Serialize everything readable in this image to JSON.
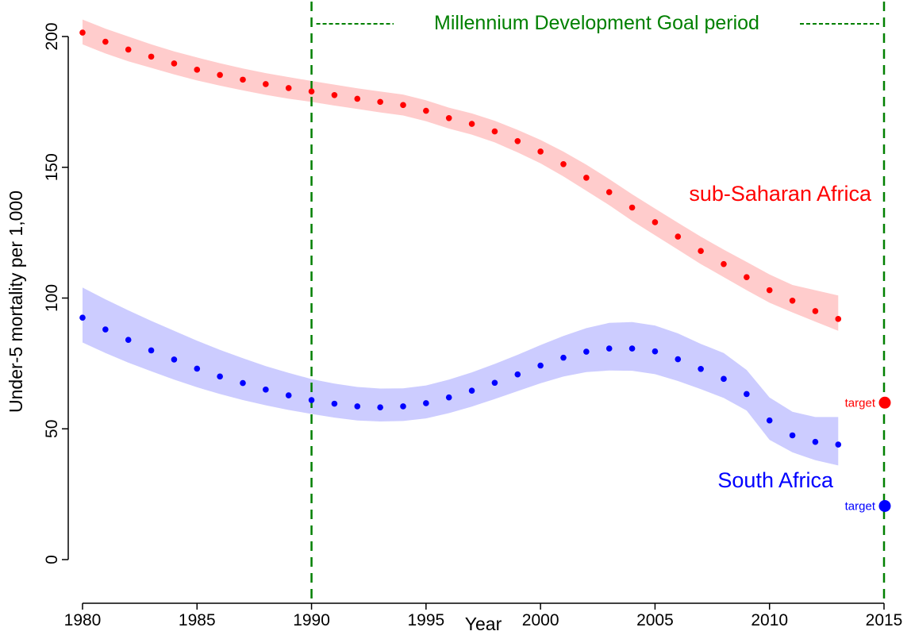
{
  "chart_data": {
    "type": "scatter",
    "xlabel": "Year",
    "ylabel": "Under-5 mortality per 1,000",
    "xlim": [
      1980,
      2015
    ],
    "ylim": [
      0,
      200
    ],
    "x_ticks": [
      "1980",
      "1985",
      "1990",
      "1995",
      "2000",
      "2005",
      "2010",
      "2015"
    ],
    "y_ticks": [
      "0",
      "50",
      "100",
      "150",
      "200"
    ],
    "grid": false,
    "years": [
      1980,
      1981,
      1982,
      1983,
      1984,
      1985,
      1986,
      1987,
      1988,
      1989,
      1990,
      1991,
      1992,
      1993,
      1994,
      1995,
      1996,
      1997,
      1998,
      1999,
      2000,
      2001,
      2002,
      2003,
      2004,
      2005,
      2006,
      2007,
      2008,
      2009,
      2010,
      2011,
      2012,
      2013
    ],
    "series": [
      {
        "name": "sub-Saharan Africa",
        "color": "#ff0000",
        "band_color": "#ffcccc",
        "values": [
          201.5,
          198,
          195,
          192.3,
          189.7,
          187.3,
          185.3,
          183.5,
          181.8,
          180.3,
          179,
          177.6,
          176.2,
          175,
          173.8,
          171.6,
          168.8,
          166.6,
          163.7,
          160,
          156,
          151.2,
          146,
          140.5,
          134.6,
          129,
          123.5,
          118,
          113,
          108,
          103,
          99,
          95,
          92
        ],
        "lower": [
          197,
          193.5,
          190.5,
          188,
          185.5,
          183.2,
          181.2,
          179.4,
          177.7,
          176.2,
          175,
          173.6,
          172.3,
          171,
          169.8,
          167.6,
          164.8,
          162.5,
          159.5,
          155.7,
          151.5,
          146.5,
          141,
          135.5,
          129.5,
          124,
          118.5,
          113,
          108,
          103,
          98.2,
          94.5,
          91,
          87.5
        ],
        "upper": [
          206.5,
          203,
          200,
          197,
          194.3,
          192,
          189.8,
          187.8,
          186,
          184.5,
          183,
          181.6,
          180.2,
          179,
          177.8,
          175.6,
          172.8,
          170.6,
          167.8,
          164.3,
          160.5,
          156,
          151,
          145.5,
          139.7,
          134.2,
          128.8,
          123.5,
          118.5,
          113.8,
          109,
          105,
          103,
          101
        ]
      },
      {
        "name": "South Africa",
        "color": "#0000ff",
        "band_color": "#ccccff",
        "values": [
          92.5,
          88,
          84,
          80,
          76.5,
          73,
          70,
          67.5,
          65,
          62.8,
          61,
          59.6,
          58.6,
          58.2,
          58.6,
          59.8,
          62,
          64.6,
          67.6,
          70.8,
          74.2,
          77.2,
          79.5,
          80.7,
          80.7,
          79.6,
          76.6,
          72.9,
          69.1,
          63.3,
          53.2,
          47.5,
          45,
          44
        ],
        "lower": [
          83,
          79,
          75.3,
          72,
          68.8,
          65.9,
          63.3,
          61,
          59,
          57.2,
          55.7,
          54.3,
          53.2,
          52.8,
          53,
          54,
          56,
          58.5,
          61.4,
          64.4,
          67.4,
          70,
          71.7,
          72.3,
          72.2,
          70.9,
          68.3,
          65.2,
          61.8,
          57,
          45.8,
          41,
          38,
          36
        ],
        "upper": [
          104,
          99.5,
          95.3,
          91.3,
          87.5,
          83.7,
          80.2,
          77,
          74,
          71.4,
          69,
          67.3,
          66,
          65.4,
          65.5,
          66.6,
          68.8,
          71.6,
          74.8,
          78.3,
          82,
          85.5,
          88.5,
          90.5,
          90.8,
          89.5,
          86.5,
          82.5,
          79,
          72.5,
          62,
          56.5,
          54.5,
          54.5
        ]
      }
    ],
    "targets": [
      {
        "series": "sub-Saharan Africa",
        "x": 2015,
        "y": 60,
        "label": "target",
        "color": "#ff0000"
      },
      {
        "series": "South Africa",
        "x": 2015,
        "y": 20.5,
        "label": "target",
        "color": "#0000ff"
      }
    ],
    "reference_lines": [
      {
        "x": 1990,
        "color": "#008000",
        "style": "dashed"
      },
      {
        "x": 2015,
        "color": "#008000",
        "style": "dashed"
      }
    ],
    "annotations": {
      "period_label": "Millennium Development Goal period",
      "period_color": "#008000"
    }
  }
}
